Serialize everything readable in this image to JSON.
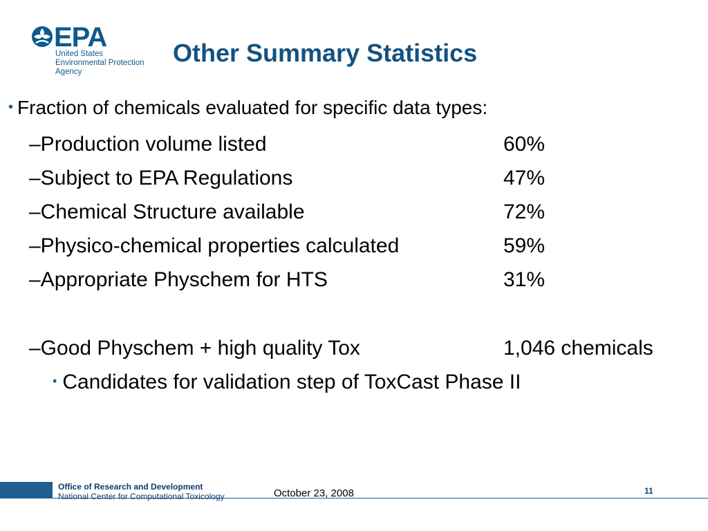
{
  "logo": {
    "acronym": "EPA",
    "line1": "United States",
    "line2": "Environmental Protection",
    "line3": "Agency",
    "color": "#0e5a8f"
  },
  "title": "Other Summary Statistics",
  "bullet": "Fraction of chemicals evaluated for specific data types:",
  "items": [
    {
      "label": "–Production volume listed",
      "value": "60%"
    },
    {
      "label": "–Subject to EPA Regulations",
      "value": "47%"
    },
    {
      "label": "–Chemical Structure available",
      "value": "72%"
    },
    {
      "label": "–Physico-chemical properties calculated",
      "value": "59%"
    },
    {
      "label": "–Appropriate Physchem for HTS",
      "value": "31%"
    },
    {
      "label": "–Good Physchem + high quality Tox",
      "value": "1,046 chemicals"
    }
  ],
  "subbullet": "Candidates for validation step of ToxCast Phase II",
  "footer": {
    "office": "Office of Research and Development",
    "center": "National Center for Computational Toxicology",
    "date": "October 23, 2008",
    "page": "11"
  },
  "colors": {
    "title": "#14527f",
    "footer_bar": "#1f5e8f"
  }
}
